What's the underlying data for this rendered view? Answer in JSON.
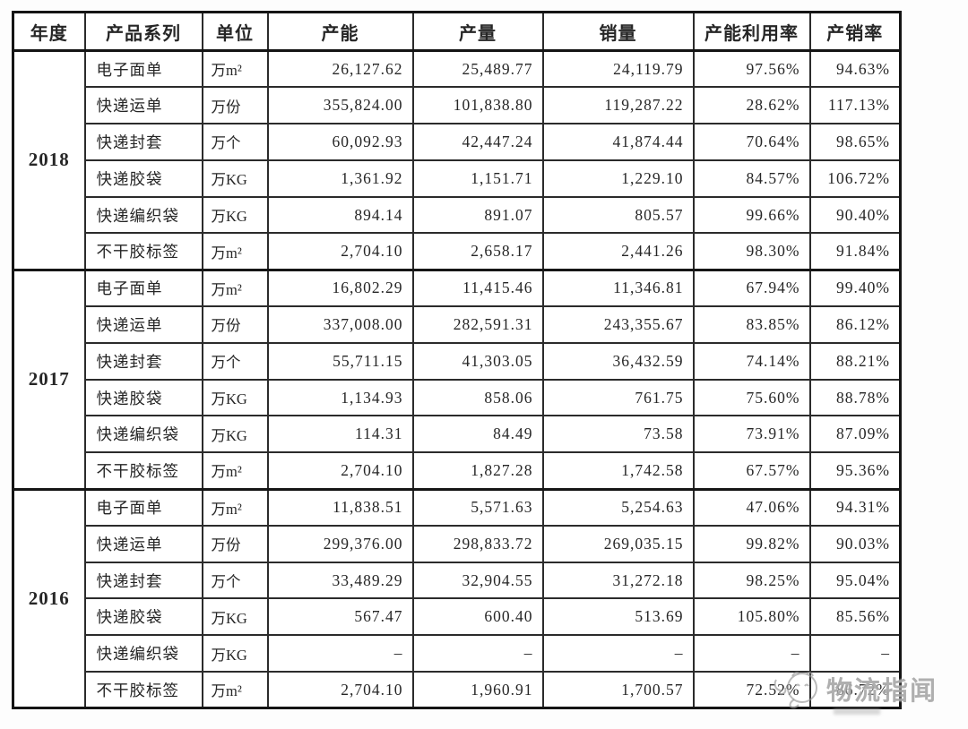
{
  "table": {
    "headers": [
      "年度",
      "产品系列",
      "单位",
      "产能",
      "产量",
      "销量",
      "产能利用率",
      "产销率"
    ],
    "groups": [
      {
        "year": "2018",
        "rows": [
          [
            "电子面单",
            "万m²",
            "26,127.62",
            "25,489.77",
            "24,119.79",
            "97.56%",
            "94.63%"
          ],
          [
            "快递运单",
            "万份",
            "355,824.00",
            "101,838.80",
            "119,287.22",
            "28.62%",
            "117.13%"
          ],
          [
            "快递封套",
            "万个",
            "60,092.93",
            "42,447.24",
            "41,874.44",
            "70.64%",
            "98.65%"
          ],
          [
            "快递胶袋",
            "万KG",
            "1,361.92",
            "1,151.71",
            "1,229.10",
            "84.57%",
            "106.72%"
          ],
          [
            "快递编织袋",
            "万KG",
            "894.14",
            "891.07",
            "805.57",
            "99.66%",
            "90.40%"
          ],
          [
            "不干胶标签",
            "万m²",
            "2,704.10",
            "2,658.17",
            "2,441.26",
            "98.30%",
            "91.84%"
          ]
        ]
      },
      {
        "year": "2017",
        "rows": [
          [
            "电子面单",
            "万m²",
            "16,802.29",
            "11,415.46",
            "11,346.81",
            "67.94%",
            "99.40%"
          ],
          [
            "快递运单",
            "万份",
            "337,008.00",
            "282,591.31",
            "243,355.67",
            "83.85%",
            "86.12%"
          ],
          [
            "快递封套",
            "万个",
            "55,711.15",
            "41,303.05",
            "36,432.59",
            "74.14%",
            "88.21%"
          ],
          [
            "快递胶袋",
            "万KG",
            "1,134.93",
            "858.06",
            "761.75",
            "75.60%",
            "88.78%"
          ],
          [
            "快递编织袋",
            "万KG",
            "114.31",
            "84.49",
            "73.58",
            "73.91%",
            "87.09%"
          ],
          [
            "不干胶标签",
            "万m²",
            "2,704.10",
            "1,827.28",
            "1,742.58",
            "67.57%",
            "95.36%"
          ]
        ]
      },
      {
        "year": "2016",
        "rows": [
          [
            "电子面单",
            "万m²",
            "11,838.51",
            "5,571.63",
            "5,254.63",
            "47.06%",
            "94.31%"
          ],
          [
            "快递运单",
            "万份",
            "299,376.00",
            "298,833.72",
            "269,035.15",
            "99.82%",
            "90.03%"
          ],
          [
            "快递封套",
            "万个",
            "33,489.29",
            "32,904.55",
            "31,272.18",
            "98.25%",
            "95.04%"
          ],
          [
            "快递胶袋",
            "万KG",
            "567.47",
            "600.40",
            "513.69",
            "105.80%",
            "85.56%"
          ],
          [
            "快递编织袋",
            "万KG",
            "–",
            "–",
            "–",
            "–",
            "–"
          ],
          [
            "不干胶标签",
            "万m²",
            "2,704.10",
            "1,960.91",
            "1,700.57",
            "72.52%",
            "86.72%"
          ]
        ]
      }
    ]
  },
  "watermark": {
    "text": "物流指闻",
    "logo": "mascot-logo-icon",
    "color": "#949494"
  }
}
